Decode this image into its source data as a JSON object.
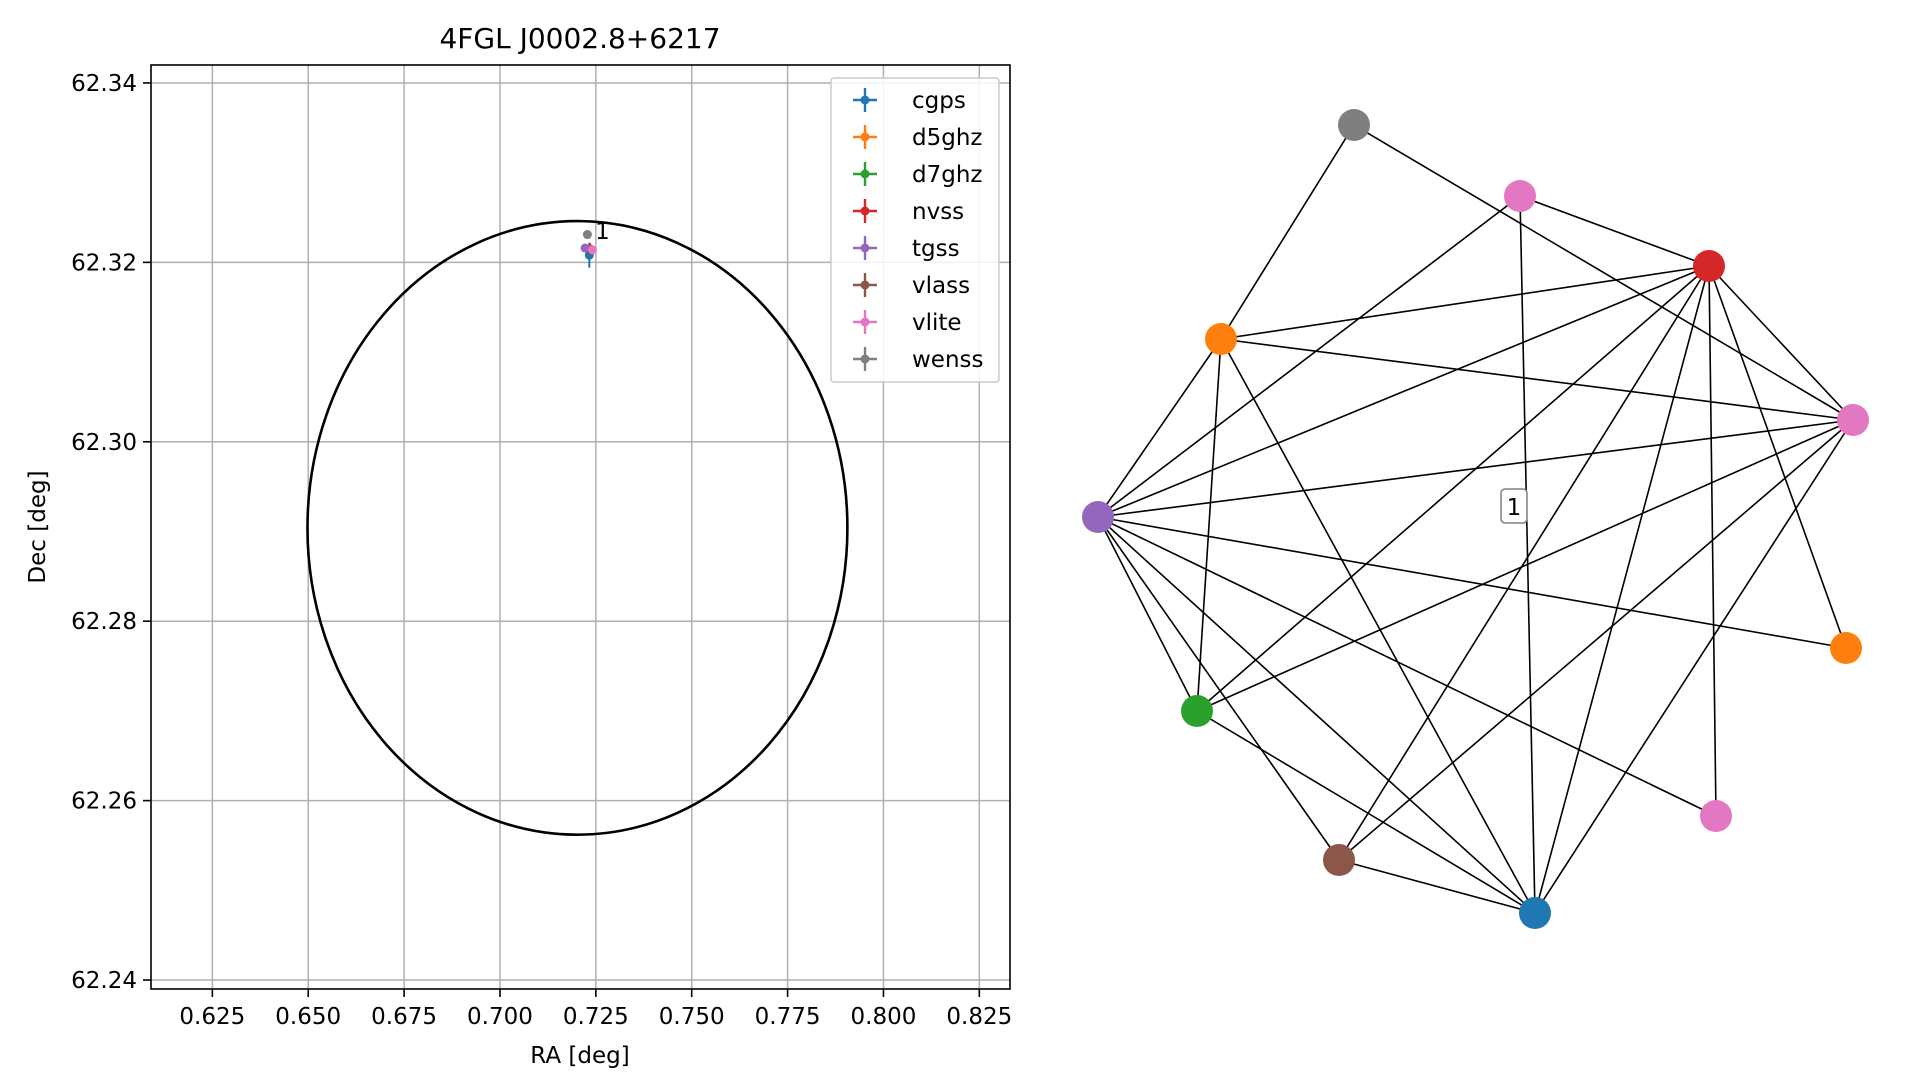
{
  "colors": {
    "cgps": "#1f77b4",
    "d5ghz": "#ff7f0e",
    "d7ghz": "#2ca02c",
    "nvss": "#d62728",
    "tgss": "#9467bd",
    "vlass": "#8c564b",
    "vlite": "#e377c2",
    "wenss": "#7f7f7f"
  },
  "chart_data": [
    {
      "type": "scatter",
      "title": "4FGL J0002.8+6217",
      "xlabel": "RA [deg]",
      "ylabel": "Dec [deg]",
      "xlim": [
        0.609,
        0.833
      ],
      "ylim": [
        62.239,
        62.342
      ],
      "xticks": [
        "0.625",
        "0.650",
        "0.675",
        "0.700",
        "0.725",
        "0.750",
        "0.775",
        "0.800",
        "0.825"
      ],
      "yticks": [
        "62.24",
        "62.26",
        "62.28",
        "62.30",
        "62.32",
        "62.34"
      ],
      "grid": true,
      "legend_position": "top-right",
      "ellipse": {
        "center": [
          0.7202,
          62.2904
        ],
        "semi_axis_ra": 0.0704,
        "semi_axis_dec": 0.0342
      },
      "series": [
        {
          "name": "cgps",
          "points": [
            {
              "x": 0.7233,
              "y": 62.3208,
              "xerr": 0.0004,
              "yerr": 0.0014
            }
          ]
        },
        {
          "name": "d5ghz",
          "points": []
        },
        {
          "name": "d7ghz",
          "points": []
        },
        {
          "name": "nvss",
          "points": [
            {
              "x": 0.7235,
              "y": 62.3215,
              "xerr": 0.0006,
              "yerr": 0.0006
            }
          ]
        },
        {
          "name": "tgss",
          "points": [
            {
              "x": 0.7222,
              "y": 62.3216,
              "xerr": 0.0008,
              "yerr": 0.0004
            }
          ]
        },
        {
          "name": "vlass",
          "points": []
        },
        {
          "name": "vlite",
          "points": [
            {
              "x": 0.7241,
              "y": 62.3214,
              "xerr": 0.0008,
              "yerr": 0.0005
            }
          ]
        },
        {
          "name": "wenss",
          "points": [
            {
              "x": 0.7228,
              "y": 62.3231,
              "xerr": 0.0003,
              "yerr": 0.0003
            }
          ]
        }
      ],
      "annotations": [
        {
          "text": "1",
          "x": 0.7248,
          "y": 62.3235
        }
      ]
    },
    {
      "type": "network",
      "nodes": [
        {
          "id": "wenss",
          "color": "wenss"
        },
        {
          "id": "vlite1",
          "color": "vlite"
        },
        {
          "id": "nvss",
          "color": "nvss"
        },
        {
          "id": "d5ghz1",
          "color": "d5ghz"
        },
        {
          "id": "vlite2",
          "color": "vlite"
        },
        {
          "id": "tgss",
          "color": "tgss"
        },
        {
          "id": "d5ghz2",
          "color": "d5ghz"
        },
        {
          "id": "d7ghz",
          "color": "d7ghz"
        },
        {
          "id": "vlite3",
          "color": "vlite"
        },
        {
          "id": "vlass",
          "color": "vlass"
        },
        {
          "id": "cgps",
          "color": "cgps"
        }
      ],
      "edges": [
        [
          "wenss",
          "d5ghz1"
        ],
        [
          "wenss",
          "vlite2"
        ],
        [
          "vlite1",
          "nvss"
        ],
        [
          "vlite1",
          "tgss"
        ],
        [
          "vlite1",
          "cgps"
        ],
        [
          "nvss",
          "d5ghz1"
        ],
        [
          "nvss",
          "tgss"
        ],
        [
          "nvss",
          "vlite2"
        ],
        [
          "nvss",
          "d5ghz2"
        ],
        [
          "nvss",
          "vlite3"
        ],
        [
          "nvss",
          "cgps"
        ],
        [
          "nvss",
          "vlass"
        ],
        [
          "nvss",
          "d7ghz"
        ],
        [
          "d5ghz1",
          "vlite2"
        ],
        [
          "d5ghz1",
          "tgss"
        ],
        [
          "d5ghz1",
          "d7ghz"
        ],
        [
          "d5ghz1",
          "cgps"
        ],
        [
          "vlite2",
          "tgss"
        ],
        [
          "vlite2",
          "d7ghz"
        ],
        [
          "vlite2",
          "vlass"
        ],
        [
          "vlite2",
          "cgps"
        ],
        [
          "tgss",
          "d5ghz2"
        ],
        [
          "tgss",
          "d7ghz"
        ],
        [
          "tgss",
          "vlass"
        ],
        [
          "tgss",
          "cgps"
        ],
        [
          "tgss",
          "vlite3"
        ],
        [
          "d7ghz",
          "cgps"
        ],
        [
          "vlass",
          "cgps"
        ]
      ],
      "label": "1"
    }
  ]
}
